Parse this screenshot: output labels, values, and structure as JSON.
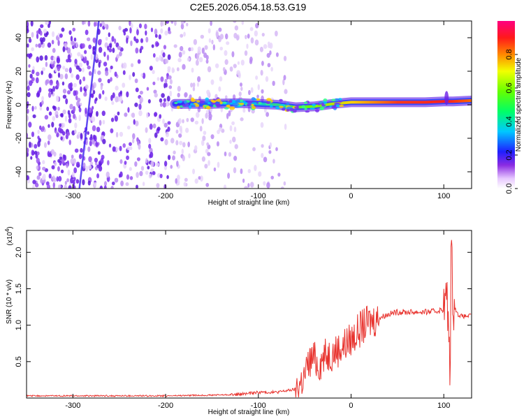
{
  "page": {
    "title": "C2E5.2026.054.18.53.G19"
  },
  "chart_data": [
    {
      "type": "heatmap",
      "title": "C2E5.2026.054.18.53.G19",
      "xlabel": "Height of straight line (km)",
      "ylabel": "Frequency (Hz)",
      "xlim": [
        -350,
        130
      ],
      "ylim": [
        -50,
        50
      ],
      "xticks": [
        -300,
        -200,
        -100,
        0,
        100
      ],
      "xtick_labels": [
        "-300",
        "-200",
        "-100",
        "0",
        "100"
      ],
      "yticks": [
        -40,
        -20,
        0,
        20,
        40
      ],
      "ytick_labels": [
        "-40",
        "-20",
        "0",
        "20",
        "40"
      ],
      "ridge": {
        "x": [
          -190,
          -150,
          -120,
          -100,
          -80,
          -60,
          -40,
          -20,
          0,
          20,
          50,
          80,
          100,
          110,
          130
        ],
        "y": [
          0.5,
          0.5,
          1,
          0.5,
          0,
          -1.5,
          -1,
          0.5,
          1.5,
          1.5,
          1.5,
          1.5,
          2,
          2,
          2.5
        ],
        "amplitude": [
          0.15,
          0.2,
          0.3,
          0.45,
          0.55,
          0.6,
          0.55,
          0.65,
          0.8,
          0.9,
          0.95,
          0.95,
          0.9,
          0.85,
          0.85
        ]
      },
      "colorbar": {
        "label": "Normalized spectral amplitude",
        "ticks": [
          0.0,
          0.2,
          0.4,
          0.6,
          0.8
        ],
        "tick_labels": [
          "0.0",
          "0.2",
          "0.4",
          "0.6",
          "0.8"
        ],
        "range": [
          0,
          1
        ]
      },
      "grid": false
    },
    {
      "type": "line",
      "xlabel": "Height of straight line (km)",
      "ylabel": "SNR (10 * v/v)",
      "y_multiplier": "(x10",
      "y_multiplier_exp": "4",
      "y_multiplier_close": ")",
      "xlim": [
        -350,
        130
      ],
      "ylim": [
        0,
        2.3
      ],
      "xticks": [
        -300,
        -200,
        -100,
        0,
        100
      ],
      "xtick_labels": [
        "-300",
        "-200",
        "-100",
        "0",
        "100"
      ],
      "yticks": [
        0.5,
        1.0,
        1.5,
        2.0
      ],
      "ytick_labels": [
        "0.5",
        "1.0",
        "1.5",
        "2.0"
      ],
      "series": [
        {
          "color": "#e8332e",
          "x": [
            -350,
            -300,
            -200,
            -150,
            -120,
            -100,
            -80,
            -60,
            -55,
            -50,
            -45,
            -40,
            -35,
            -30,
            -25,
            -20,
            -10,
            0,
            10,
            20,
            30,
            40,
            50,
            60,
            70,
            80,
            90,
            95,
            100,
            103,
            105,
            107,
            108,
            110,
            115,
            120,
            130
          ],
          "y": [
            0.03,
            0.03,
            0.03,
            0.04,
            0.05,
            0.08,
            0.08,
            0.12,
            0.2,
            0.3,
            0.5,
            0.55,
            0.45,
            0.55,
            0.6,
            0.62,
            0.7,
            0.8,
            0.95,
            1.05,
            1.1,
            1.15,
            1.18,
            1.18,
            1.18,
            1.18,
            1.19,
            1.2,
            1.22,
            1.4,
            1.0,
            0.4,
            2.2,
            1.3,
            1.15,
            1.12,
            1.13
          ]
        }
      ],
      "grid": false
    }
  ]
}
